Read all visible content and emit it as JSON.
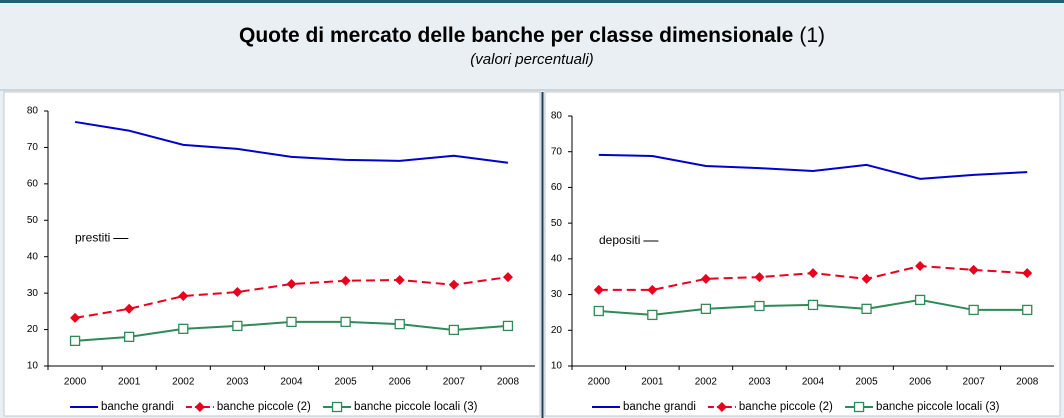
{
  "header": {
    "title": "Quote di mercato delle banche per classe dimensionale",
    "title_note": "(1)",
    "subtitle": "(valori percentuali)"
  },
  "chart_data": [
    {
      "type": "line",
      "annotation": "prestiti",
      "categories": [
        "2000",
        "2001",
        "2002",
        "2003",
        "2004",
        "2005",
        "2006",
        "2007",
        "2008"
      ],
      "series": [
        {
          "name": "banche grandi",
          "color": "#0000cc",
          "marker": "none",
          "dashed": false,
          "values": [
            77,
            74.6,
            70.7,
            69.6,
            67.4,
            66.6,
            66.3,
            67.7,
            65.8
          ]
        },
        {
          "name": "banche piccole (2)",
          "color": "#e8001c",
          "marker": "diamond",
          "dashed": true,
          "values": [
            23.2,
            25.7,
            29.2,
            30.3,
            32.5,
            33.4,
            33.6,
            32.3,
            34.4
          ]
        },
        {
          "name": "banche piccole locali (3)",
          "color": "#2e8b57",
          "marker": "square",
          "dashed": false,
          "values": [
            16.9,
            18,
            20.2,
            21,
            22.1,
            22.1,
            21.5,
            19.9,
            21
          ]
        }
      ],
      "ylim": [
        10,
        80
      ],
      "yticks": [
        10,
        20,
        30,
        40,
        50,
        60,
        70,
        80
      ],
      "grid": false,
      "legend": "bottom"
    },
    {
      "type": "line",
      "annotation": "depositi",
      "categories": [
        "2000",
        "2001",
        "2002",
        "2003",
        "2004",
        "2005",
        "2006",
        "2007",
        "2008"
      ],
      "series": [
        {
          "name": "banche grandi",
          "color": "#0000cc",
          "marker": "none",
          "dashed": false,
          "values": [
            69.1,
            68.8,
            66,
            65.4,
            64.6,
            66.3,
            62.4,
            63.5,
            64.3
          ]
        },
        {
          "name": "banche piccole (2)",
          "color": "#e8001c",
          "marker": "diamond",
          "dashed": true,
          "values": [
            31.3,
            31.3,
            34.4,
            34.9,
            36,
            34.4,
            38,
            36.9,
            36
          ]
        },
        {
          "name": "banche piccole locali (3)",
          "color": "#2e8b57",
          "marker": "square",
          "dashed": false,
          "values": [
            25.4,
            24.3,
            26,
            26.8,
            27.1,
            26,
            28.5,
            25.7,
            25.7
          ]
        }
      ],
      "ylim": [
        10,
        80
      ],
      "yticks": [
        10,
        20,
        30,
        40,
        50,
        60,
        70,
        80
      ],
      "grid": false,
      "legend": "bottom"
    }
  ]
}
